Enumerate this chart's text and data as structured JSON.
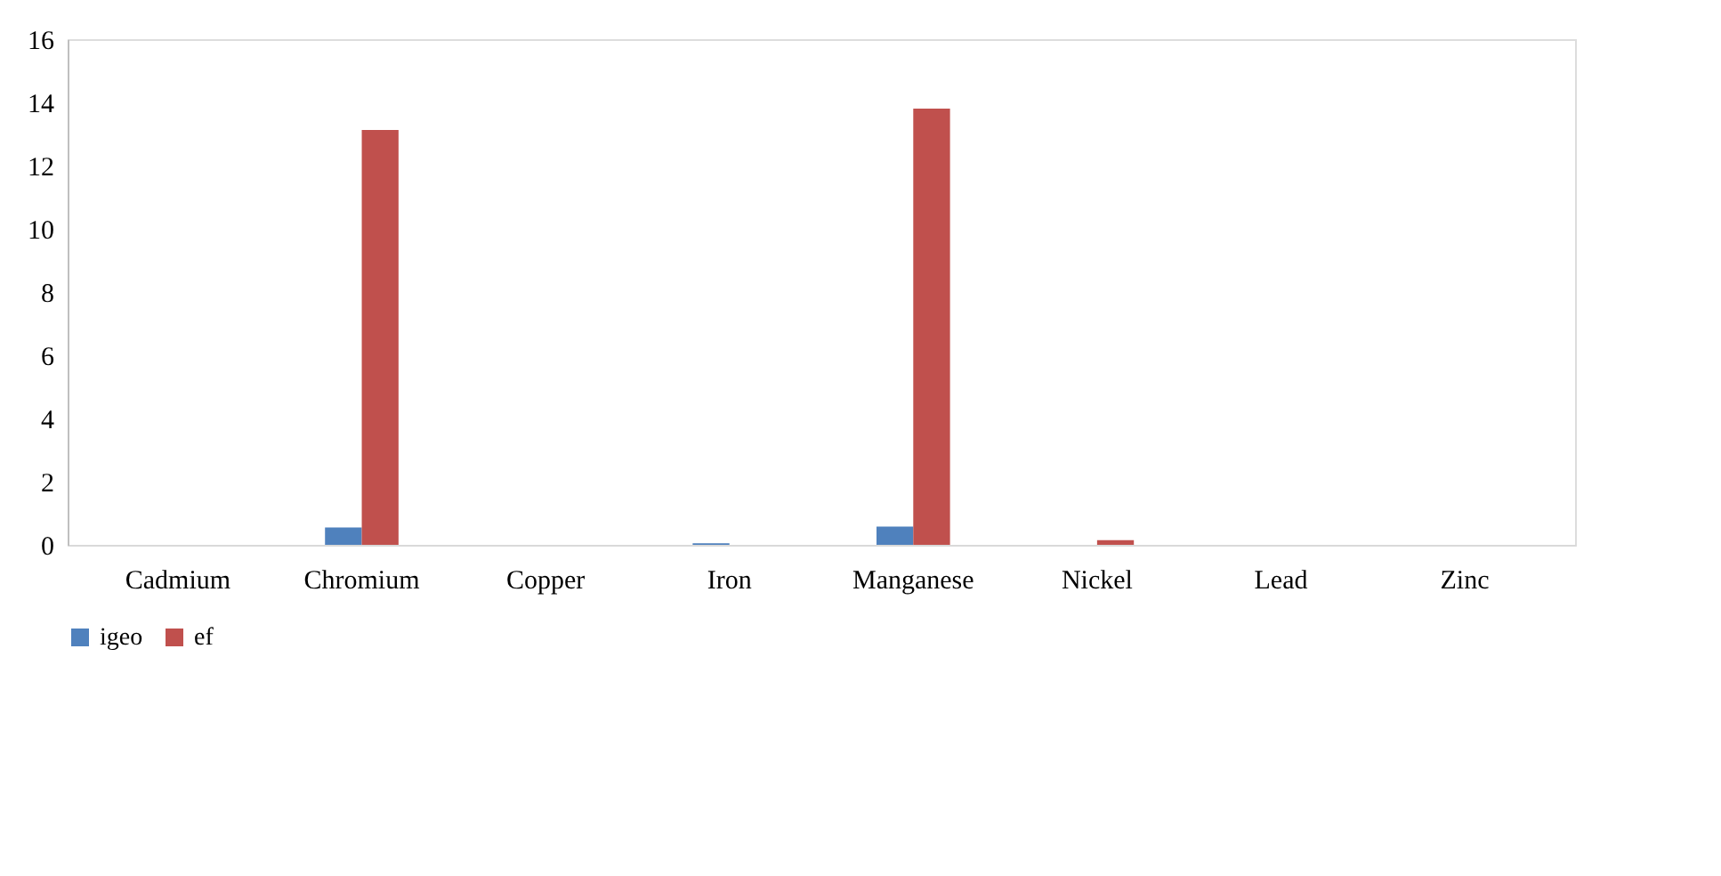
{
  "chart_data": {
    "type": "bar",
    "categories": [
      "Cadmium",
      "Chromium",
      "Copper",
      "Iron",
      "Manganese",
      "Nickel",
      "Lead",
      "Zinc"
    ],
    "series": [
      {
        "name": "igeo",
        "color": "#4f81bd",
        "values": [
          0,
          0.55,
          0,
          0.05,
          0.58,
          0,
          0,
          0
        ]
      },
      {
        "name": "ef",
        "color": "#c0504d",
        "values": [
          0,
          13.13,
          0,
          0,
          13.8,
          0.15,
          0,
          0
        ]
      }
    ],
    "ylim": [
      0,
      16
    ],
    "yticks": [
      0,
      2,
      4,
      6,
      8,
      10,
      12,
      14,
      16
    ],
    "grid": false,
    "legend": "bottom"
  }
}
